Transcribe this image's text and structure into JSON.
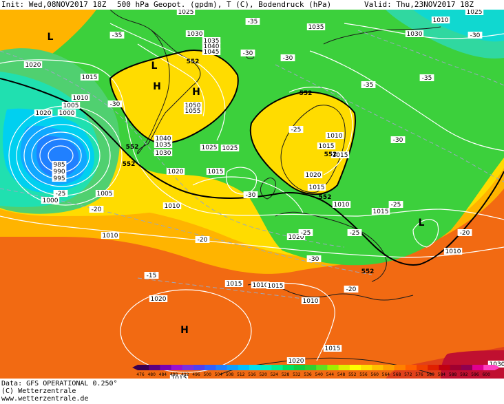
{
  "header": {
    "init_label": "Init:",
    "init_value": "Wed,08NOV2017 18Z",
    "fields": "500 hPa Geopot. (gpdm), T (C), Bodendruck (hPa)",
    "valid_label": "Valid:",
    "valid_value": "Thu,23NOV2017 18Z"
  },
  "footer": {
    "data": "Data: GFS OPERATIONAL 0.250°",
    "copyright": "(C) Wetterzentrale",
    "url": "www.wetterzentrale.de"
  },
  "colorbar": {
    "values": [
      476,
      480,
      484,
      488,
      492,
      496,
      500,
      504,
      508,
      512,
      516,
      520,
      524,
      528,
      532,
      536,
      540,
      544,
      548,
      552,
      556,
      560,
      564,
      568,
      572,
      576,
      580,
      584,
      588,
      592,
      596,
      600
    ],
    "colors": [
      "#3a0050",
      "#5a0080",
      "#7a00b0",
      "#9a10d0",
      "#7a30e0",
      "#5040f0",
      "#3060ff",
      "#2080ff",
      "#10a0ff",
      "#00c0ff",
      "#00e0f0",
      "#00f0c0",
      "#00f090",
      "#00e060",
      "#10d040",
      "#30d030",
      "#60e020",
      "#a0f000",
      "#e0f000",
      "#ffff00",
      "#ffe000",
      "#ffc000",
      "#ffa000",
      "#ff8000",
      "#ff6000",
      "#f04000",
      "#e02000",
      "#c00010",
      "#a00030",
      "#900050",
      "#e00090",
      "#ff40c0"
    ]
  },
  "map_labels": {
    "pressure_highs_lows": [
      {
        "text": "L"
      },
      {
        "text": "L"
      },
      {
        "text": "H"
      },
      {
        "text": "H"
      },
      {
        "text": "L"
      },
      {
        "text": "H"
      }
    ],
    "isobars": [
      "1025",
      "1030",
      "1035",
      "1040",
      "1045",
      "1050",
      "1055",
      "1020",
      "1015",
      "1010",
      "1005",
      "1000",
      "995",
      "990",
      "985",
      "1035",
      "1030",
      "1025",
      "1020",
      "1015",
      "1010",
      "1025",
      "1020",
      "1015",
      "1010",
      "1020",
      "1015",
      "1040",
      "1035",
      "1030",
      "1025",
      "1015",
      "1010",
      "1015",
      "1010",
      "1015",
      "1020",
      "1015",
      "1020",
      "1010",
      "1010",
      "1015",
      "1010",
      "1005",
      "1000",
      "1020",
      "1010",
      "1015",
      "1030"
    ],
    "temperatures": [
      "-35",
      "-30",
      "-30",
      "-35",
      "-30",
      "-25",
      "-30",
      "-35",
      "-30",
      "-25",
      "-30",
      "-25",
      "-25",
      "-20",
      "-20",
      "-25",
      "-20",
      "-15",
      "-20",
      "-30",
      "-35"
    ],
    "geopotential": [
      "552",
      "552",
      "552",
      "552",
      "552",
      "552",
      "552"
    ]
  }
}
